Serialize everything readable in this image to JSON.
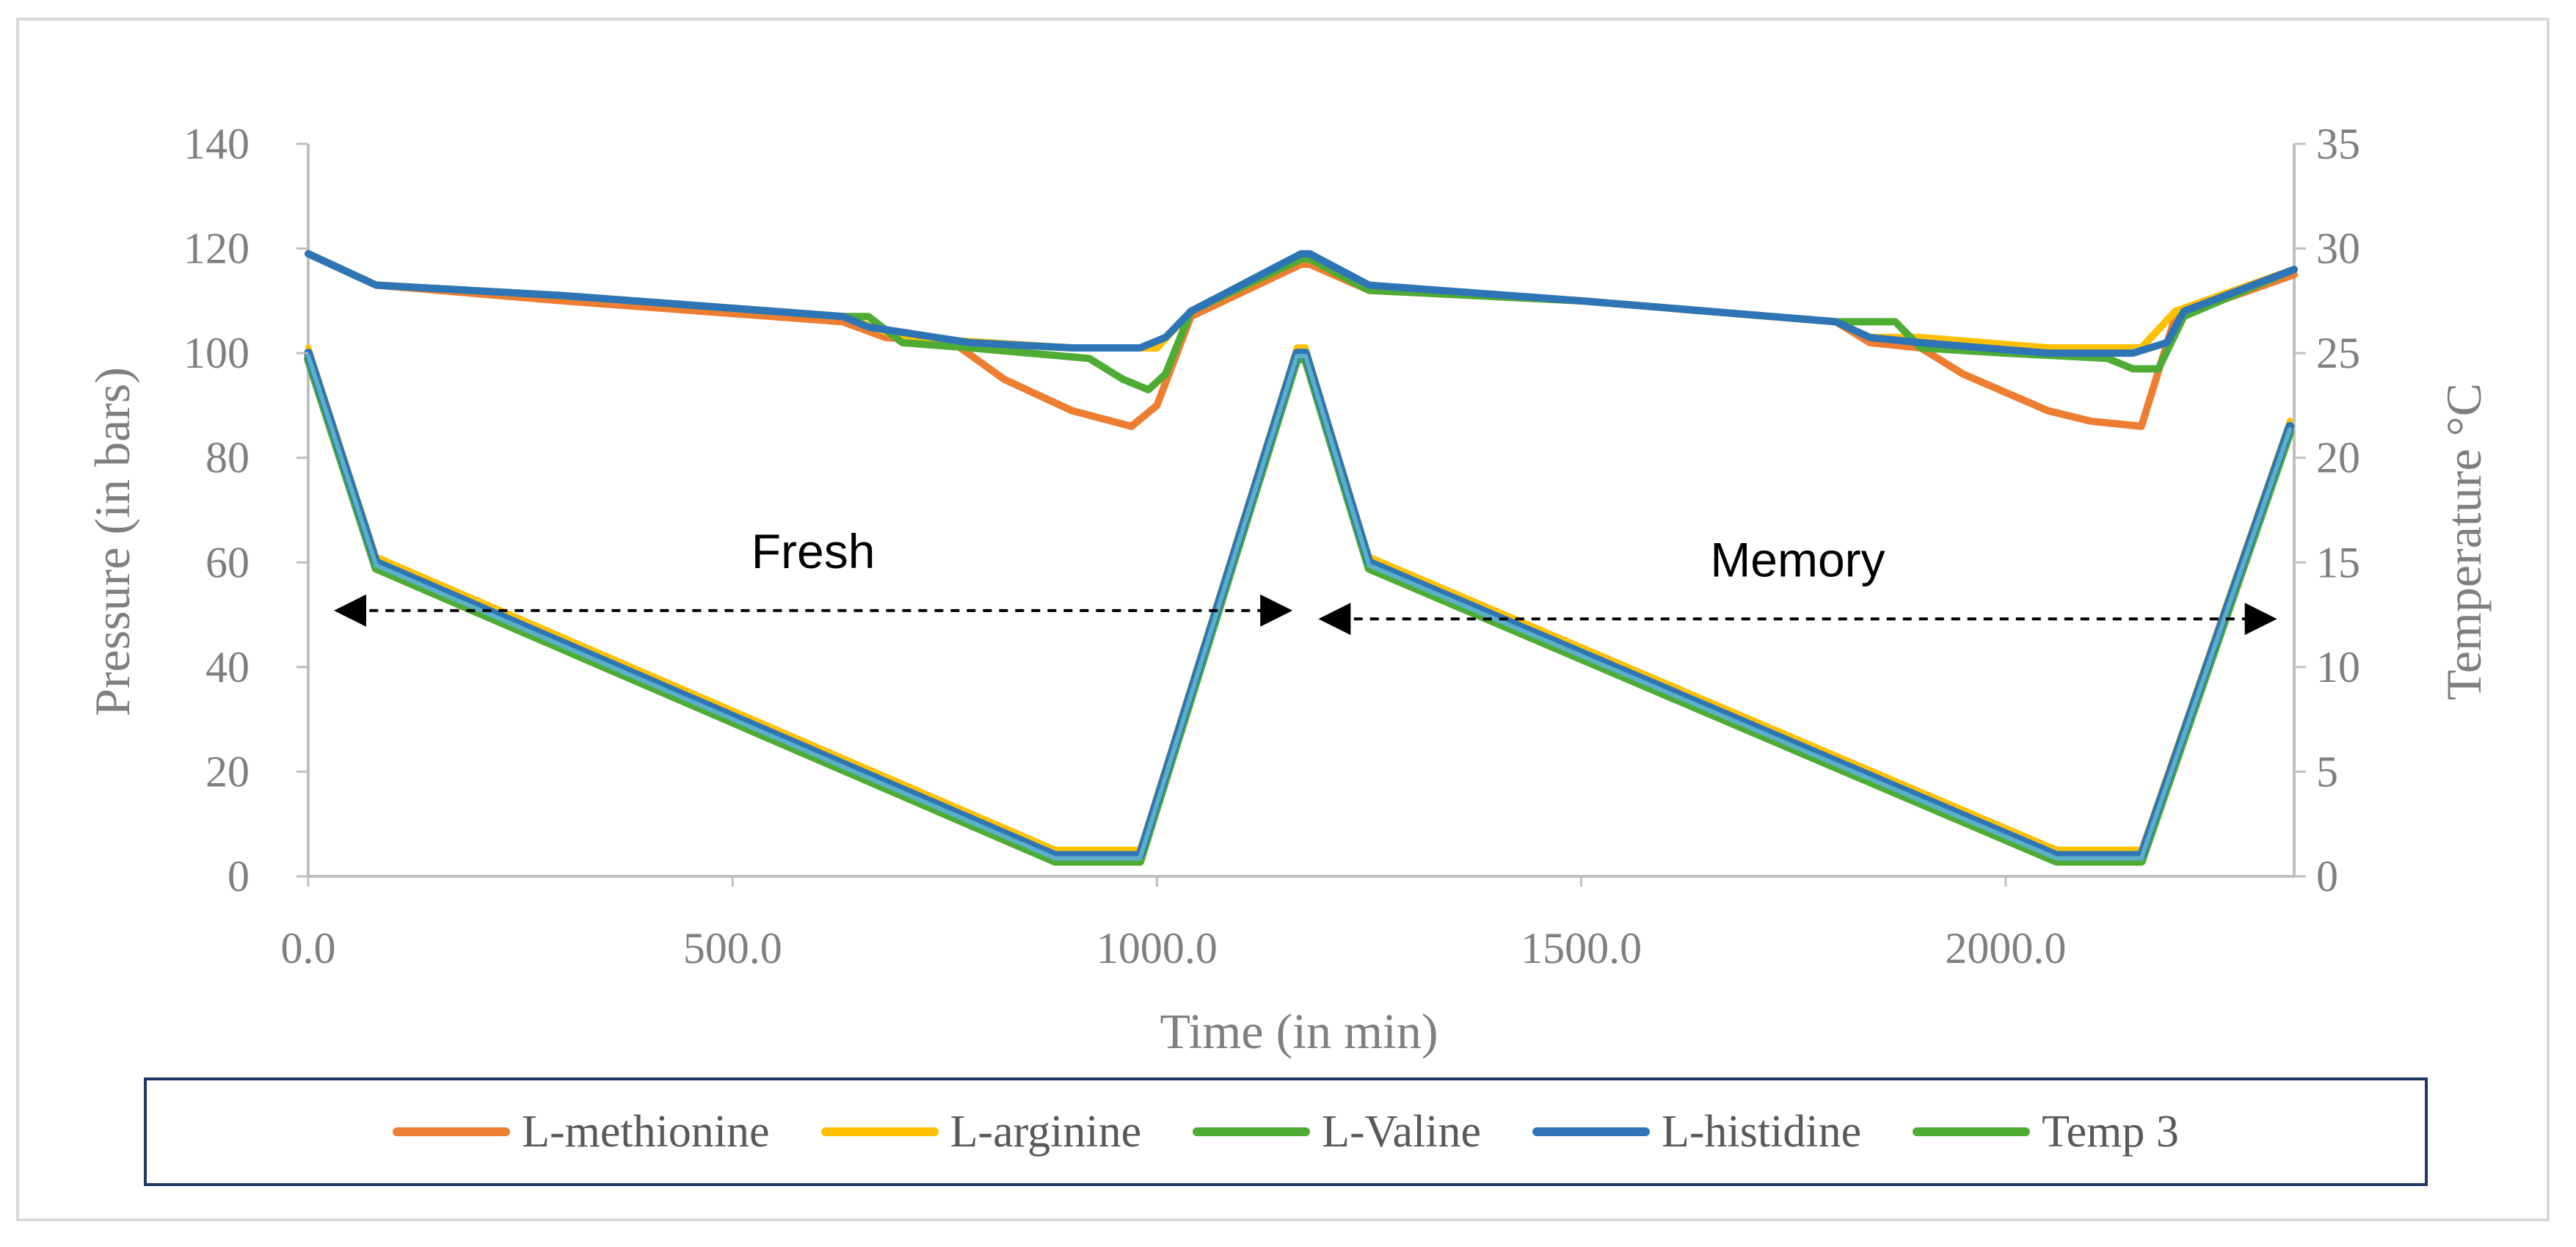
{
  "chart_data": {
    "type": "line",
    "xlabel": "Time (in min)",
    "ylabel": "Pressure (in bars)",
    "y2label": "Temperature °C",
    "xlim": [
      0,
      2340
    ],
    "ylim": [
      0,
      140
    ],
    "y2lim": [
      0,
      35
    ],
    "x_ticks": [
      "0.0",
      "500.0",
      "1000.0",
      "1500.0",
      "2000.0"
    ],
    "x_tick_values": [
      0,
      500,
      1000,
      1500,
      2000
    ],
    "y_ticks": [
      "0",
      "20",
      "40",
      "60",
      "80",
      "100",
      "120",
      "140"
    ],
    "y2_ticks": [
      "0",
      "5",
      "10",
      "15",
      "20",
      "25",
      "30",
      "35"
    ],
    "grid": false,
    "legend_position": "bottom",
    "annotations": [
      {
        "text": "Fresh",
        "from_x": 15,
        "to_x": 1175,
        "y2": 12.7
      },
      {
        "text": "Memory",
        "from_x": 1175,
        "to_x": 2335,
        "y2": 12.3
      }
    ],
    "series": [
      {
        "name": "L-methionine",
        "color": "#ED7D31",
        "axis": "left",
        "x": [
          0,
          80,
          300,
          630,
          680,
          760,
          820,
          900,
          970,
          1000,
          1040,
          1170,
          1180,
          1250,
          1500,
          1800,
          1840,
          1900,
          1950,
          2050,
          2100,
          2160,
          2200,
          2340
        ],
        "y": [
          119,
          113,
          110,
          106,
          103,
          102,
          95,
          89,
          86,
          90,
          107,
          117,
          117,
          112,
          110,
          106,
          102,
          101,
          96,
          89,
          87,
          86,
          107,
          115
        ]
      },
      {
        "name": "L-arginine",
        "color": "#FFC000",
        "axis": "left",
        "x": [
          0,
          80,
          300,
          630,
          700,
          900,
          1000,
          1040,
          1170,
          1180,
          1250,
          1500,
          1800,
          1840,
          1900,
          2050,
          2160,
          2200,
          2340
        ],
        "y": [
          119,
          113,
          111,
          107,
          103,
          101,
          101,
          108,
          118,
          118,
          112,
          110,
          106,
          103,
          103,
          101,
          101,
          108,
          116
        ]
      },
      {
        "name": "L-Valine",
        "color": "#4EAC35",
        "axis": "left",
        "x": [
          0,
          80,
          300,
          630,
          660,
          700,
          780,
          920,
          960,
          990,
          1010,
          1040,
          1170,
          1180,
          1250,
          1500,
          1800,
          1870,
          1900,
          2000,
          2120,
          2150,
          2180,
          2210,
          2340
        ],
        "y": [
          119,
          113,
          111,
          107,
          107,
          102,
          101,
          99,
          95,
          93,
          96,
          108,
          118,
          118,
          112,
          110,
          106,
          106,
          101,
          100,
          99,
          97,
          97,
          107,
          116
        ]
      },
      {
        "name": "L-histidine",
        "color": "#2E75B6",
        "axis": "left",
        "x": [
          0,
          80,
          300,
          630,
          660,
          780,
          900,
          980,
          1010,
          1040,
          1170,
          1180,
          1250,
          1500,
          1800,
          1840,
          1900,
          2050,
          2150,
          2190,
          2210,
          2340
        ],
        "y": [
          119,
          113,
          111,
          107,
          105,
          102,
          101,
          101,
          103,
          108,
          119,
          119,
          113,
          110,
          106,
          103,
          102,
          100,
          100,
          102,
          108,
          116
        ]
      },
      {
        "name": "Temp 3",
        "color": "#4EAC35",
        "axis": "right",
        "x": [
          0,
          80,
          880,
          980,
          1165,
          1175,
          1250,
          2060,
          2160,
          2335
        ],
        "y": [
          25,
          15,
          1,
          1,
          25,
          25,
          15,
          1,
          1,
          21.5
        ]
      }
    ]
  }
}
